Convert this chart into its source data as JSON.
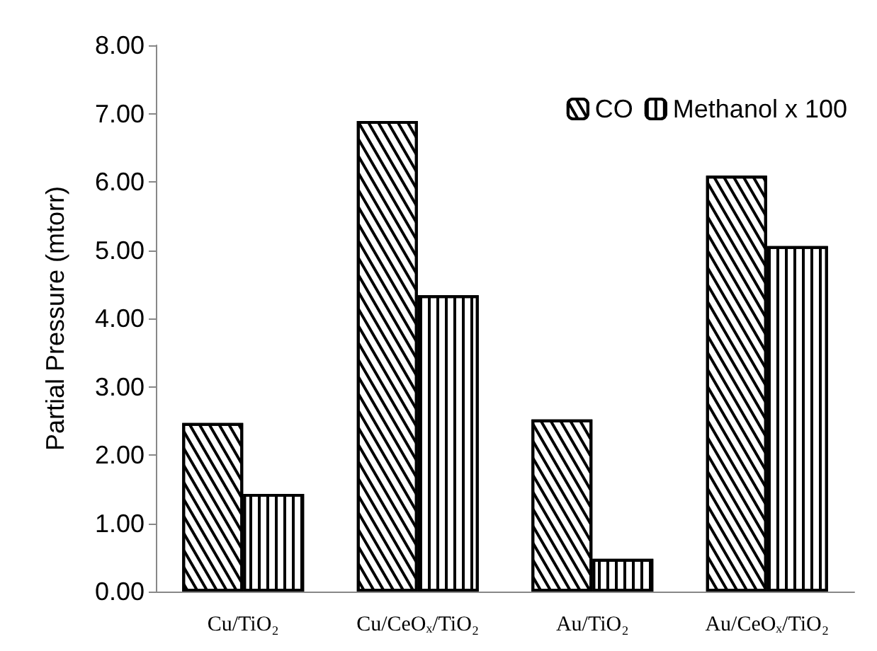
{
  "chart_data": {
    "type": "bar",
    "ylabel": "Partial Pressure (mtorr)",
    "categories": [
      "Cu/TiO₂",
      "Cu/CeOₓ/TiO₂",
      "Au/TiO₂",
      "Au/CeOₓ/TiO₂"
    ],
    "series": [
      {
        "name": "CO",
        "color": "#ffffff",
        "values": [
          2.47,
          6.89,
          2.52,
          6.09
        ]
      },
      {
        "name": "Methanol x 100",
        "color": "#ffffff",
        "values": [
          1.43,
          4.34,
          0.48,
          5.06
        ]
      }
    ],
    "ylim": [
      0,
      8
    ],
    "yticks": [
      {
        "value": 0,
        "label": "0.00"
      },
      {
        "value": 1,
        "label": "1.00"
      },
      {
        "value": 2,
        "label": "2.00"
      },
      {
        "value": 3,
        "label": "3.00"
      },
      {
        "value": 4,
        "label": "4.00"
      },
      {
        "value": 5,
        "label": "5.00"
      },
      {
        "value": 6,
        "label": "6.00"
      },
      {
        "value": 7,
        "label": "7.00"
      },
      {
        "value": 8,
        "label": "8.00"
      }
    ],
    "grid": false,
    "legend": "top right"
  }
}
